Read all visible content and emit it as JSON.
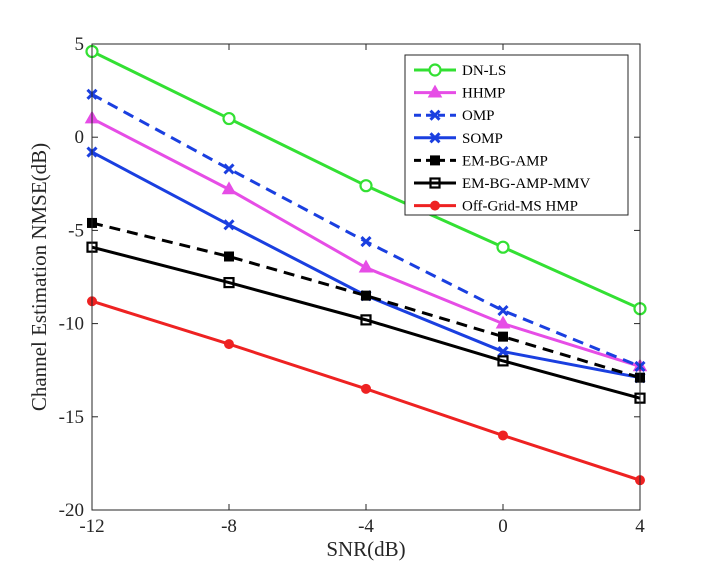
{
  "chart_data": {
    "type": "line",
    "xlabel": "SNR(dB)",
    "ylabel": "Channel Estimation NMSE(dB)",
    "xlim": [
      -12,
      4
    ],
    "ylim": [
      -20,
      5
    ],
    "xticks": [
      "-12",
      "-8",
      "-4",
      "0",
      "4"
    ],
    "yticks": [
      "5",
      "0",
      "-5",
      "-10",
      "-15",
      "-20"
    ],
    "x": [
      -12,
      -8,
      -4,
      0,
      4
    ],
    "legend_position": "top-right",
    "series": [
      {
        "name": "DN-LS",
        "values": [
          4.6,
          1.0,
          -2.6,
          -5.9,
          -9.2
        ],
        "color": "#33e033",
        "dash": "solid",
        "marker": "circle-open"
      },
      {
        "name": "HHMP",
        "values": [
          1.0,
          -2.8,
          -7.0,
          -10.0,
          -12.3
        ],
        "color": "#e64de6",
        "dash": "solid",
        "marker": "triangle"
      },
      {
        "name": "OMP",
        "values": [
          2.3,
          -1.7,
          -5.6,
          -9.3,
          -12.3
        ],
        "color": "#1a3fe0",
        "dash": "dashed",
        "marker": "x-bold"
      },
      {
        "name": "SOMP",
        "values": [
          -0.8,
          -4.7,
          -8.5,
          -11.5,
          -12.9
        ],
        "color": "#1a3fe0",
        "dash": "solid",
        "marker": "x-bold"
      },
      {
        "name": "EM-BG-AMP",
        "values": [
          -4.6,
          -6.4,
          -8.5,
          -10.7,
          -12.9
        ],
        "color": "#000000",
        "dash": "dashed",
        "marker": "square-filled"
      },
      {
        "name": "EM-BG-AMP-MMV",
        "values": [
          -5.9,
          -7.8,
          -9.8,
          -12.0,
          -14.0
        ],
        "color": "#000000",
        "dash": "solid",
        "marker": "square-open"
      },
      {
        "name": "Off-Grid-MS HMP",
        "values": [
          -8.8,
          -11.1,
          -13.5,
          -16.0,
          -18.4
        ],
        "color": "#ee2222",
        "dash": "solid",
        "marker": "circle-filled"
      }
    ]
  }
}
